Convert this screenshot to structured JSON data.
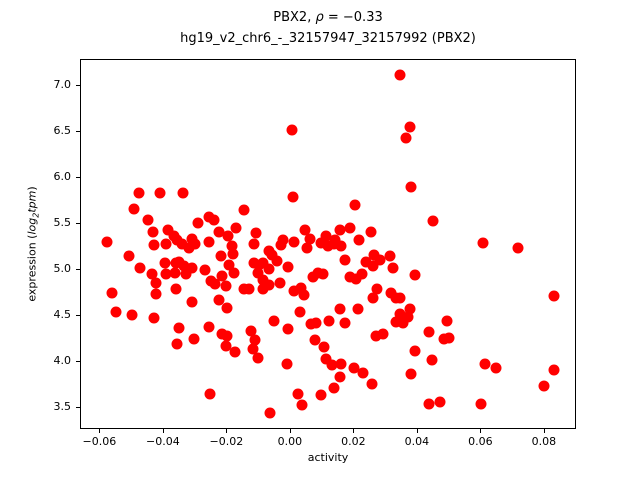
{
  "chart_data": {
    "type": "scatter",
    "title": "PBX2, ρ = −0.33",
    "title_parts": {
      "prefix": "PBX2, ",
      "rho": "ρ",
      "equals_suffix": " = −0.33"
    },
    "subtitle": "hg19_v2_chr6_-_32157947_32157992 (PBX2)",
    "xlabel": "activity",
    "ylabel": "expression (log2tpm)",
    "ylabel_parts": {
      "prefix": "expression (",
      "log_italic": "log",
      "subscript": "2",
      "tpm_italic": "tpm",
      "close": ")"
    },
    "rho": -0.33,
    "marker_color": "#ff0000",
    "background_color": "#ffffff",
    "spine_color": "#000000",
    "grid": false,
    "legend_position": null,
    "xlim": [
      -0.0661,
      0.0901
    ],
    "ylim": [
      3.26,
      7.28
    ],
    "x_ticks": [
      -0.06,
      -0.04,
      -0.02,
      0.0,
      0.02,
      0.04,
      0.06,
      0.08
    ],
    "x_tick_labels": [
      "−0.06",
      "−0.04",
      "−0.02",
      "0.00",
      "0.02",
      "0.04",
      "0.06",
      "0.08"
    ],
    "y_ticks": [
      3.5,
      4.0,
      4.5,
      5.0,
      5.5,
      6.0,
      6.5,
      7.0
    ],
    "y_tick_labels": [
      "3.5",
      "4.0",
      "4.5",
      "5.0",
      "5.5",
      "6.0",
      "6.5",
      "7.0"
    ],
    "points": [
      [
        0.0343,
        7.12
      ],
      [
        0.0003,
        6.52
      ],
      [
        0.0375,
        6.55
      ],
      [
        0.0362,
        6.43
      ],
      [
        0.0378,
        5.9
      ],
      [
        -0.0479,
        5.84
      ],
      [
        -0.0413,
        5.84
      ],
      [
        -0.034,
        5.84
      ],
      [
        0.0006,
        5.79
      ],
      [
        0.0202,
        5.71
      ],
      [
        -0.0494,
        5.66
      ],
      [
        -0.0148,
        5.65
      ],
      [
        -0.0258,
        5.57
      ],
      [
        -0.045,
        5.54
      ],
      [
        -0.0243,
        5.54
      ],
      [
        0.0447,
        5.53
      ],
      [
        -0.0293,
        5.51
      ],
      [
        0.0186,
        5.45
      ],
      [
        -0.0173,
        5.45
      ],
      [
        -0.0435,
        5.41
      ],
      [
        -0.0227,
        5.41
      ],
      [
        0.0044,
        5.43
      ],
      [
        0.0154,
        5.43
      ],
      [
        -0.0387,
        5.43
      ],
      [
        0.0252,
        5.41
      ],
      [
        -0.011,
        5.4
      ],
      [
        -0.0198,
        5.37
      ],
      [
        -0.0369,
        5.37
      ],
      [
        0.011,
        5.37
      ],
      [
        0.006,
        5.34
      ],
      [
        -0.0312,
        5.34
      ],
      [
        0.0214,
        5.33
      ],
      [
        -0.0025,
        5.33
      ],
      [
        -0.0359,
        5.32
      ],
      [
        0.0139,
        5.32
      ],
      [
        -0.058,
        5.3
      ],
      [
        -0.0258,
        5.3
      ],
      [
        0.0009,
        5.3
      ],
      [
        0.0605,
        5.29
      ],
      [
        -0.0431,
        5.27
      ],
      [
        -0.0394,
        5.28
      ],
      [
        -0.0343,
        5.28
      ],
      [
        -0.0321,
        5.24
      ],
      [
        -0.0302,
        5.28
      ],
      [
        -0.0117,
        5.28
      ],
      [
        0.0715,
        5.24
      ],
      [
        -0.0031,
        5.27
      ],
      [
        0.0094,
        5.29
      ],
      [
        0.005,
        5.24
      ],
      [
        0.0117,
        5.26
      ],
      [
        0.0135,
        5.28
      ],
      [
        0.0157,
        5.26
      ],
      [
        -0.0186,
        5.26
      ],
      [
        -0.0069,
        5.21
      ],
      [
        0.0261,
        5.16
      ],
      [
        -0.022,
        5.15
      ],
      [
        -0.0183,
        5.17
      ],
      [
        -0.051,
        5.15
      ],
      [
        0.0312,
        5.15
      ],
      [
        -0.006,
        5.16
      ],
      [
        0.017,
        5.11
      ],
      [
        0.028,
        5.11
      ],
      [
        -0.0044,
        5.1
      ],
      [
        -0.0353,
        5.09
      ],
      [
        0.0236,
        5.09
      ],
      [
        -0.0362,
        5.07
      ],
      [
        -0.0397,
        5.07
      ],
      [
        -0.0117,
        5.07
      ],
      [
        -0.0088,
        5.08
      ],
      [
        -0.0195,
        5.05
      ],
      [
        0.0258,
        5.04
      ],
      [
        -0.0337,
        5.04
      ],
      [
        -0.0476,
        5.02
      ],
      [
        -0.0312,
        5.02
      ],
      [
        0.0321,
        5.02
      ],
      [
        -0.0069,
        5.01
      ],
      [
        -0.0271,
        5.0
      ],
      [
        -0.0101,
        5.05
      ],
      [
        -0.0009,
        5.03
      ],
      [
        -0.0438,
        4.96
      ],
      [
        -0.0394,
        4.96
      ],
      [
        -0.0331,
        4.96
      ],
      [
        -0.0365,
        4.97
      ],
      [
        -0.018,
        4.97
      ],
      [
        0.0085,
        4.97
      ],
      [
        0.0101,
        4.96
      ],
      [
        0.0224,
        4.96
      ],
      [
        -0.0104,
        4.97
      ],
      [
        0.0391,
        4.94
      ],
      [
        -0.0217,
        4.93
      ],
      [
        0.0069,
        4.92
      ],
      [
        0.0186,
        4.92
      ],
      [
        0.0205,
        4.9
      ],
      [
        -0.0088,
        4.89
      ],
      [
        -0.0252,
        4.88
      ],
      [
        -0.0425,
        4.86
      ],
      [
        -0.0239,
        4.85
      ],
      [
        -0.0035,
        4.86
      ],
      [
        -0.0205,
        4.83
      ],
      [
        -0.0069,
        4.84
      ],
      [
        0.0031,
        4.8
      ],
      [
        -0.0362,
        4.79
      ],
      [
        0.0271,
        4.79
      ],
      [
        -0.0148,
        4.79
      ],
      [
        -0.0132,
        4.79
      ],
      [
        -0.0088,
        4.79
      ],
      [
        0.0009,
        4.77
      ],
      [
        -0.0564,
        4.75
      ],
      [
        -0.0425,
        4.74
      ],
      [
        0.0315,
        4.75
      ],
      [
        0.0041,
        4.73
      ],
      [
        0.0828,
        4.72
      ],
      [
        0.0331,
        4.7
      ],
      [
        0.0343,
        4.7
      ],
      [
        0.0258,
        4.7
      ],
      [
        -0.0312,
        4.65
      ],
      [
        -0.0227,
        4.67
      ],
      [
        -0.0202,
        4.59
      ],
      [
        -0.0551,
        4.54
      ],
      [
        0.0028,
        4.54
      ],
      [
        0.0154,
        4.57
      ],
      [
        0.0211,
        4.57
      ],
      [
        -0.0501,
        4.51
      ],
      [
        0.0375,
        4.58
      ],
      [
        0.0343,
        4.52
      ],
      [
        0.0369,
        4.49
      ],
      [
        0.0331,
        4.43
      ],
      [
        0.0353,
        4.42
      ],
      [
        -0.0431,
        4.48
      ],
      [
        0.0491,
        4.45
      ],
      [
        -0.0054,
        4.45
      ],
      [
        0.012,
        4.45
      ],
      [
        0.0063,
        4.41
      ],
      [
        0.0079,
        4.42
      ],
      [
        0.017,
        4.42
      ],
      [
        -0.0353,
        4.37
      ],
      [
        -0.0258,
        4.38
      ],
      [
        -0.0009,
        4.36
      ],
      [
        -0.0126,
        4.34
      ],
      [
        0.0435,
        4.33
      ],
      [
        -0.0217,
        4.3
      ],
      [
        -0.0202,
        4.28
      ],
      [
        0.029,
        4.3
      ],
      [
        0.0268,
        4.28
      ],
      [
        -0.0306,
        4.25
      ],
      [
        -0.0113,
        4.24
      ],
      [
        0.0076,
        4.24
      ],
      [
        0.0482,
        4.25
      ],
      [
        0.0498,
        4.26
      ],
      [
        -0.0359,
        4.2
      ],
      [
        -0.0205,
        4.17
      ],
      [
        0.0104,
        4.16
      ],
      [
        -0.0176,
        4.11
      ],
      [
        -0.012,
        4.14
      ],
      [
        0.0391,
        4.12
      ],
      [
        -0.0104,
        4.04
      ],
      [
        0.011,
        4.03
      ],
      [
        0.0444,
        4.02
      ],
      [
        -0.0013,
        3.98
      ],
      [
        0.0157,
        3.98
      ],
      [
        0.0129,
        3.97
      ],
      [
        0.0611,
        3.98
      ],
      [
        0.0198,
        3.93
      ],
      [
        0.0646,
        3.93
      ],
      [
        0.0828,
        3.91
      ],
      [
        0.0227,
        3.88
      ],
      [
        0.0378,
        3.87
      ],
      [
        0.0154,
        3.84
      ],
      [
        0.0255,
        3.76
      ],
      [
        0.0797,
        3.74
      ],
      [
        0.0135,
        3.72
      ],
      [
        0.0094,
        3.64
      ],
      [
        0.0022,
        3.65
      ],
      [
        -0.0255,
        3.65
      ],
      [
        0.0435,
        3.54
      ],
      [
        0.0469,
        3.57
      ],
      [
        0.0598,
        3.54
      ],
      [
        0.0035,
        3.53
      ],
      [
        -0.0066,
        3.44
      ]
    ]
  }
}
